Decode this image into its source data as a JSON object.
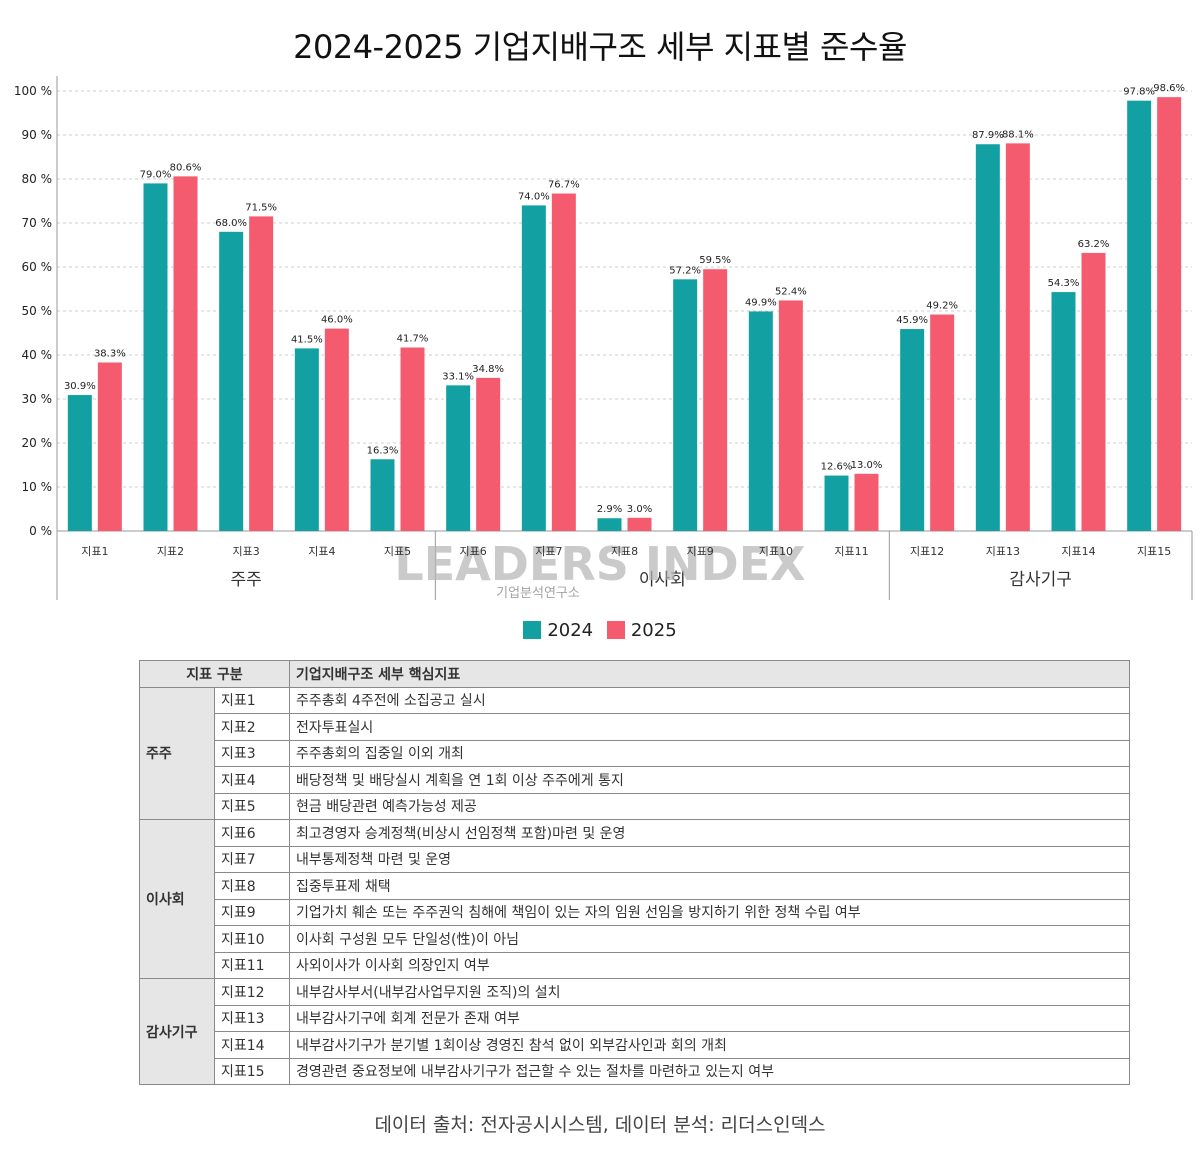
{
  "chart_data": {
    "type": "bar",
    "title": "2024-2025 기업지배구조 세부 지표별 준수율",
    "categories": [
      "지표1",
      "지표2",
      "지표3",
      "지표4",
      "지표5",
      "지표6",
      "지표7",
      "지표8",
      "지표9",
      "지표10",
      "지표11",
      "지표12",
      "지표13",
      "지표14",
      "지표15"
    ],
    "groups": [
      {
        "name": "주주",
        "count": 5
      },
      {
        "name": "이사회",
        "count": 6
      },
      {
        "name": "감사기구",
        "count": 4
      }
    ],
    "series": [
      {
        "name": "2024",
        "color": "#12a0a3",
        "values": [
          30.9,
          79.0,
          68.0,
          41.5,
          16.3,
          33.1,
          74.0,
          2.9,
          57.2,
          49.9,
          12.6,
          45.9,
          87.9,
          54.3,
          97.8
        ],
        "labels": [
          "30.9%",
          "79.0%",
          "68.0%",
          "41.5%",
          "16.3%",
          "33.1%",
          "74.0%",
          "2.9%",
          "57.2%",
          "49.9%",
          "12.6%",
          "45.9%",
          "87.9%",
          "54.3%",
          "97.8%"
        ]
      },
      {
        "name": "2025",
        "color": "#f55b6f",
        "values": [
          38.3,
          80.6,
          71.5,
          46.0,
          41.7,
          34.8,
          76.7,
          3.0,
          59.5,
          52.4,
          13.0,
          49.2,
          88.1,
          63.2,
          98.6
        ],
        "labels": [
          "38.3%",
          "80.6%",
          "71.5%",
          "46.0%",
          "41.7%",
          "34.8%",
          "76.7%",
          "3.0%",
          "59.5%",
          "52.4%",
          "13.0%",
          "49.2%",
          "88.1%",
          "63.2%",
          "98.6%"
        ]
      }
    ],
    "yticks": [
      "0 %",
      "10 %",
      "20 %",
      "30 %",
      "40 %",
      "50 %",
      "60 %",
      "70 %",
      "80 %",
      "90 %",
      "100 %"
    ],
    "ylim": [
      0,
      100
    ],
    "grid": true,
    "legend_position": "bottom-center",
    "watermark": {
      "brand": "LEADERS INDEX",
      "sub": "기업분석연구소"
    }
  },
  "table": {
    "headers": [
      "지표 구분",
      "기업지배구조 세부 핵심지표"
    ],
    "groups": [
      {
        "name": "주주",
        "rows": [
          {
            "code": "지표1",
            "desc": "주주총회 4주전에 소집공고 실시"
          },
          {
            "code": "지표2",
            "desc": "전자투표실시"
          },
          {
            "code": "지표3",
            "desc": "주주총회의 집중일 이외 개최"
          },
          {
            "code": "지표4",
            "desc": "배당정책 및 배당실시 계획을 연 1회 이상 주주에게 통지"
          },
          {
            "code": "지표5",
            "desc": "현금 배당관련 예측가능성 제공"
          }
        ]
      },
      {
        "name": "이사회",
        "rows": [
          {
            "code": "지표6",
            "desc": "최고경영자 승계정책(비상시 선임정책 포함)마련 및 운영"
          },
          {
            "code": "지표7",
            "desc": "내부통제정책 마련 및 운영"
          },
          {
            "code": "지표8",
            "desc": "집중투표제 채택"
          },
          {
            "code": "지표9",
            "desc": "기업가치 훼손 또는 주주권익 침해에 책임이 있는 자의 임원 선임을 방지하기 위한 정책 수립 여부"
          },
          {
            "code": "지표10",
            "desc": "이사회 구성원 모두 단일성(性)이 아님"
          },
          {
            "code": "지표11",
            "desc": "사외이사가 이사회 의장인지 여부"
          }
        ]
      },
      {
        "name": "감사기구",
        "rows": [
          {
            "code": "지표12",
            "desc": "내부감사부서(내부감사업무지원 조직)의 설치"
          },
          {
            "code": "지표13",
            "desc": "내부감사기구에 회계 전문가 존재 여부"
          },
          {
            "code": "지표14",
            "desc": "내부감사기구가 분기별 1회이상 경영진 참석 없이 외부감사인과 회의 개최"
          },
          {
            "code": "지표15",
            "desc": "경영관련 중요정보에 내부감사기구가 접근할 수 있는 절차를 마련하고 있는지 여부"
          }
        ]
      }
    ]
  },
  "source": "데이터 출처: 전자공시시스템, 데이터 분석: 리더스인덱스"
}
